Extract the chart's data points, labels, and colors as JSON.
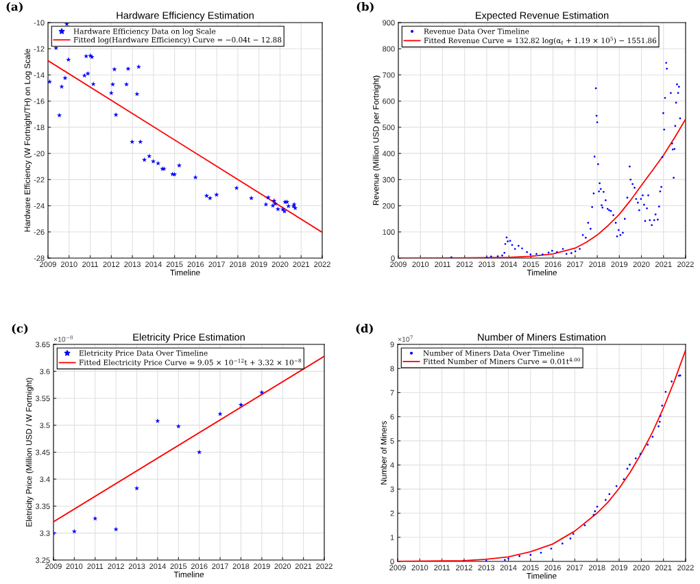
{
  "chart_data": [
    {
      "type": "scatter",
      "title": "Hardware Efficiency Estimation",
      "xlabel": "Timeline",
      "ylabel": "Hardware Efficiency (W Fortnight/TH) on Log Scale",
      "annotations": [
        "(a)"
      ],
      "xlim": [
        2009,
        2022
      ],
      "ylim": [
        -28,
        -10
      ],
      "xticks": [
        2009,
        2010,
        2011,
        2012,
        2013,
        2014,
        2015,
        2016,
        2017,
        2018,
        2019,
        2020,
        2021,
        2022
      ],
      "yticks": [
        -28,
        -26,
        -24,
        -22,
        -20,
        -18,
        -16,
        -14,
        -12,
        -10
      ],
      "grid": true,
      "legend": "top left",
      "series": [
        {
          "name": "Hardware Efficiency Data on log Scale",
          "marker": "star",
          "color": "#0000ff",
          "x": [
            2009.08,
            2009.38,
            2009.54,
            2009.65,
            2009.81,
            2009.89,
            2009.97,
            2010.73,
            2010.81,
            2010.89,
            2011.01,
            2011.08,
            2011.15,
            2012.0,
            2012.07,
            2012.15,
            2012.22,
            2012.72,
            2012.8,
            2012.99,
            2013.22,
            2013.3,
            2013.38,
            2013.57,
            2013.8,
            2013.99,
            2014.22,
            2014.42,
            2014.5,
            2014.9,
            2015.0,
            2015.22,
            2015.99,
            2016.52,
            2016.68,
            2016.99,
            2017.94,
            2018.64,
            2019.33,
            2019.44,
            2019.66,
            2019.72,
            2019.77,
            2019.9,
            2020.13,
            2020.21,
            2020.24,
            2020.33,
            2020.4,
            2020.64,
            2020.67,
            2020.72
          ],
          "values": [
            -14.52,
            -11.94,
            -17.09,
            -14.9,
            -14.24,
            -10.11,
            -12.83,
            -14.05,
            -12.57,
            -13.9,
            -12.53,
            -12.63,
            -14.7,
            -15.38,
            -14.72,
            -13.57,
            -17.05,
            -14.72,
            -13.53,
            -19.11,
            -15.46,
            -13.38,
            -19.11,
            -20.49,
            -20.21,
            -20.61,
            -20.76,
            -21.18,
            -21.18,
            -21.58,
            -21.6,
            -20.92,
            -21.83,
            -23.24,
            -23.42,
            -23.16,
            -22.64,
            -23.42,
            -23.9,
            -23.37,
            -23.99,
            -23.61,
            -23.84,
            -24.26,
            -24.28,
            -24.43,
            -23.71,
            -23.71,
            -24.03,
            -24.03,
            -23.9,
            -24.18
          ]
        },
        {
          "name": "Fitted log(Hardware Efficiency) Curve = −0.04t − 12.88",
          "type": "line",
          "color": "#ff0000",
          "x": [
            2009,
            2022
          ],
          "values": [
            -12.91,
            -26.03
          ]
        }
      ]
    },
    {
      "type": "scatter",
      "title": "Expected Revenue Estimation",
      "xlabel": "Timeline",
      "ylabel": "Revenue (Million USD per Fortnight)",
      "annotations": [
        "(b)"
      ],
      "xlim": [
        2009,
        2022
      ],
      "ylim": [
        0,
        900
      ],
      "xticks": [
        2009,
        2010,
        2011,
        2012,
        2013,
        2014,
        2015,
        2016,
        2017,
        2018,
        2019,
        2020,
        2021,
        2022
      ],
      "yticks": [
        0,
        100,
        200,
        300,
        400,
        500,
        600,
        700,
        800,
        900
      ],
      "grid": true,
      "legend": "top left",
      "series": [
        {
          "name": "Revenue Data Over Timeline",
          "marker": "circle",
          "color": "#0000ff",
          "x": [
            2011.4,
            2013.0,
            2013.2,
            2013.5,
            2013.7,
            2013.8,
            2013.84,
            2013.9,
            2013.95,
            2014.06,
            2014.15,
            2014.28,
            2014.44,
            2014.6,
            2014.82,
            2014.98,
            2015.25,
            2015.53,
            2015.8,
            2015.96,
            2016.18,
            2016.45,
            2016.61,
            2016.83,
            2017.01,
            2017.21,
            2017.35,
            2017.48,
            2017.59,
            2017.7,
            2017.77,
            2017.84,
            2017.88,
            2017.94,
            2017.97,
            2018.0,
            2018.04,
            2018.08,
            2018.11,
            2018.16,
            2018.2,
            2018.24,
            2018.29,
            2018.38,
            2018.47,
            2018.54,
            2018.62,
            2018.73,
            2018.84,
            2018.9,
            2018.97,
            2019.05,
            2019.16,
            2019.25,
            2019.36,
            2019.47,
            2019.51,
            2019.6,
            2019.69,
            2019.76,
            2019.84,
            2019.9,
            2019.98,
            2020.06,
            2020.12,
            2020.17,
            2020.25,
            2020.31,
            2020.38,
            2020.47,
            2020.58,
            2020.64,
            2020.74,
            2020.8,
            2020.85,
            2020.9,
            2020.95,
            2020.99,
            2021.03,
            2021.07,
            2021.12,
            2021.15,
            2021.33,
            2021.39,
            2021.42,
            2021.46,
            2021.5,
            2021.53,
            2021.57,
            2021.61,
            2021.66,
            2021.7,
            2021.75
          ],
          "values": [
            3,
            2,
            6,
            7,
            10,
            20,
            54,
            79,
            64,
            66,
            50,
            35,
            47,
            37,
            23,
            14,
            16,
            14,
            21,
            28,
            23,
            35,
            16,
            19,
            26,
            35,
            88,
            78,
            135,
            112,
            195,
            247,
            388,
            649,
            544,
            519,
            359,
            255,
            286,
            264,
            202,
            193,
            253,
            221,
            188,
            183,
            180,
            164,
            135,
            83,
            107,
            88,
            97,
            150,
            231,
            350,
            300,
            283,
            269,
            226,
            212,
            183,
            226,
            240,
            204,
            142,
            190,
            240,
            145,
            126,
            145,
            167,
            147,
            197,
            255,
            272,
            386,
            554,
            491,
            612,
            746,
            724,
            631,
            438,
            415,
            307,
            417,
            505,
            594,
            664,
            631,
            655,
            534
          ]
        },
        {
          "name": "Fitted Revenue Curve = 132.82 log(α$_{t}$ + 1.19 × 10$^{5}$) − 1551.86",
          "type": "line",
          "color": "#ff0000",
          "x": [
            2009,
            2012,
            2014,
            2015,
            2016,
            2017,
            2017.5,
            2018,
            2018.5,
            2019,
            2019.5,
            2020,
            2020.5,
            2021,
            2021.5,
            2022
          ],
          "values": [
            0,
            1,
            3,
            7,
            16,
            38,
            60,
            88,
            125,
            167,
            220,
            278,
            335,
            393,
            460,
            531
          ]
        }
      ]
    },
    {
      "type": "scatter",
      "title": "Eletricity Price Estimation",
      "xlabel": "Timeline",
      "ylabel": "Eletricity Price (Million USD / W Fortnight)",
      "annotations": [
        "(c)",
        "×10$^{−8}$"
      ],
      "xlim": [
        2009,
        2022
      ],
      "ylim": [
        3.25,
        3.65
      ],
      "xticks": [
        2009,
        2010,
        2011,
        2012,
        2013,
        2014,
        2015,
        2016,
        2017,
        2018,
        2019,
        2020,
        2021,
        2022
      ],
      "yticks": [
        3.25,
        3.3,
        3.35,
        3.4,
        3.45,
        3.5,
        3.55,
        3.6,
        3.65
      ],
      "grid": true,
      "legend": "top left",
      "series": [
        {
          "name": "Eletricity Price Data Over Timeline",
          "marker": "star",
          "color": "#0000ff",
          "x": [
            2009,
            2010,
            2011,
            2012,
            2013,
            2014,
            2015,
            2016,
            2017,
            2018,
            2019
          ],
          "values": [
            3.3,
            3.303,
            3.327,
            3.307,
            3.383,
            3.508,
            3.498,
            3.45,
            3.521,
            3.538,
            3.561
          ]
        },
        {
          "name": "Fitted Electricity Price Curve = 9.05 × 10$^{−12}$t + 3.32 × 10$^{−8}$",
          "type": "line",
          "color": "#ff0000",
          "x": [
            2009,
            2022
          ],
          "values": [
            3.321,
            3.628
          ]
        }
      ]
    },
    {
      "type": "scatter",
      "title": "Number of Miners Estimation",
      "xlabel": "Timeline",
      "ylabel": "Number of Miners",
      "annotations": [
        "(d)",
        "×10$^{7}$"
      ],
      "xlim": [
        2009,
        2022
      ],
      "ylim": [
        0,
        9
      ],
      "xticks": [
        2009,
        2010,
        2011,
        2012,
        2013,
        2014,
        2015,
        2016,
        2017,
        2018,
        2019,
        2020,
        2021,
        2022
      ],
      "yticks": [
        0,
        1,
        2,
        3,
        4,
        5,
        6,
        7,
        8,
        9
      ],
      "grid": true,
      "legend": "top left",
      "series": [
        {
          "name": "Number of Miners Data Over Timeline",
          "marker": "circle",
          "color": "#0000ff",
          "x": [
            2011.98,
            2013.0,
            2013.84,
            2014.0,
            2014.5,
            2015.0,
            2015.47,
            2015.93,
            2016.44,
            2016.8,
            2016.93,
            2017.45,
            2017.85,
            2017.91,
            2018.01,
            2018.39,
            2018.56,
            2018.88,
            2019.21,
            2019.37,
            2019.48,
            2019.75,
            2019.96,
            2020.29,
            2020.51,
            2020.78,
            2020.83,
            2020.87,
            2020.94,
            2021.1,
            2021.37,
            2021.7,
            2021.76
          ],
          "values": [
            0,
            0.02,
            0.06,
            0.12,
            0.22,
            0.27,
            0.36,
            0.53,
            0.74,
            0.95,
            1.14,
            1.5,
            1.93,
            2.08,
            2.27,
            2.55,
            2.79,
            3.12,
            3.41,
            3.84,
            4.01,
            4.27,
            4.46,
            4.84,
            5.17,
            5.6,
            5.79,
            6.03,
            6.46,
            7.03,
            7.46,
            7.7,
            7.71
          ]
        },
        {
          "name": "Fitted Number of Miners Curve = 0.01t$^{4.00}$",
          "type": "line",
          "color": "#ff0000",
          "x": [
            2009,
            2012,
            2013,
            2014,
            2015,
            2016,
            2017,
            2018,
            2018.5,
            2019,
            2019.5,
            2020,
            2020.5,
            2021,
            2021.5,
            2022
          ],
          "values": [
            0,
            0.03,
            0.09,
            0.19,
            0.4,
            0.72,
            1.26,
            2.0,
            2.46,
            3.03,
            3.7,
            4.48,
            5.35,
            6.36,
            7.5,
            8.76
          ]
        }
      ]
    }
  ]
}
